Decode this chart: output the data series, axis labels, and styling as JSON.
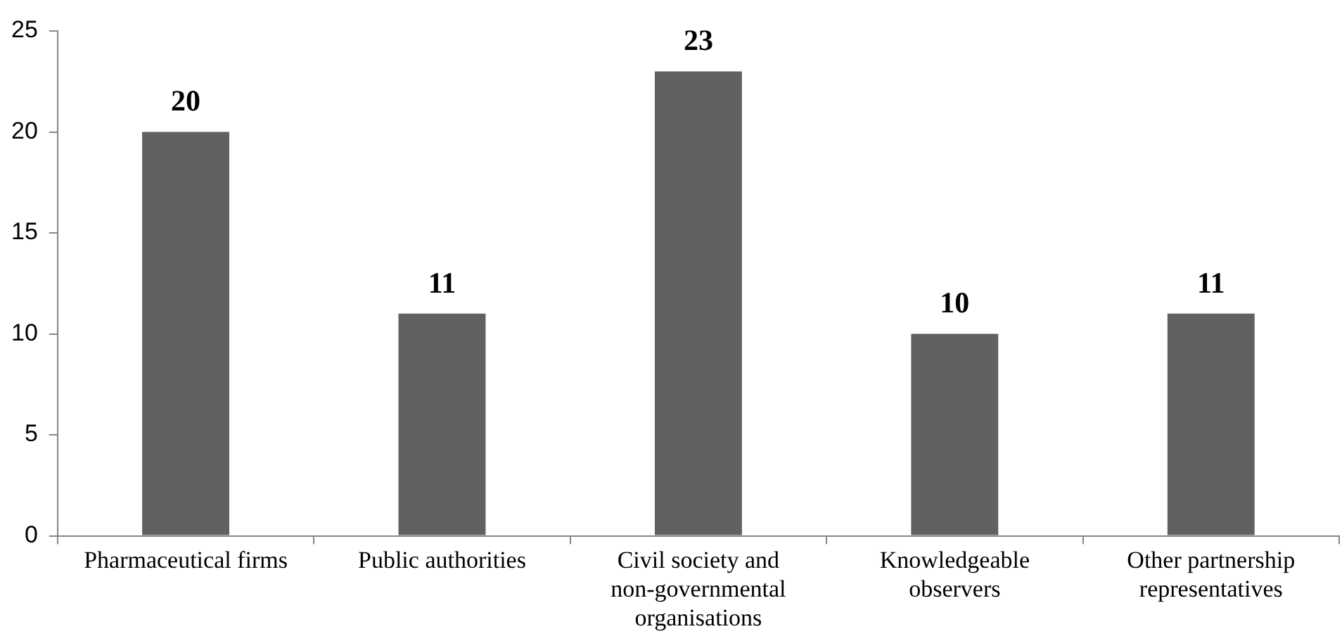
{
  "chart_data": {
    "type": "bar",
    "categories": [
      "Pharmaceutical firms",
      "Public authorities",
      "Civil society and non-governmental organisations",
      "Knowledgeable observers",
      "Other partnership representatives"
    ],
    "values": [
      20,
      11,
      23,
      10,
      11
    ],
    "color": "#616161",
    "ylim": [
      0,
      25
    ],
    "yticks": [
      0,
      5,
      10,
      15,
      20,
      25
    ],
    "grid": false,
    "legend": false,
    "data_labels": true
  }
}
